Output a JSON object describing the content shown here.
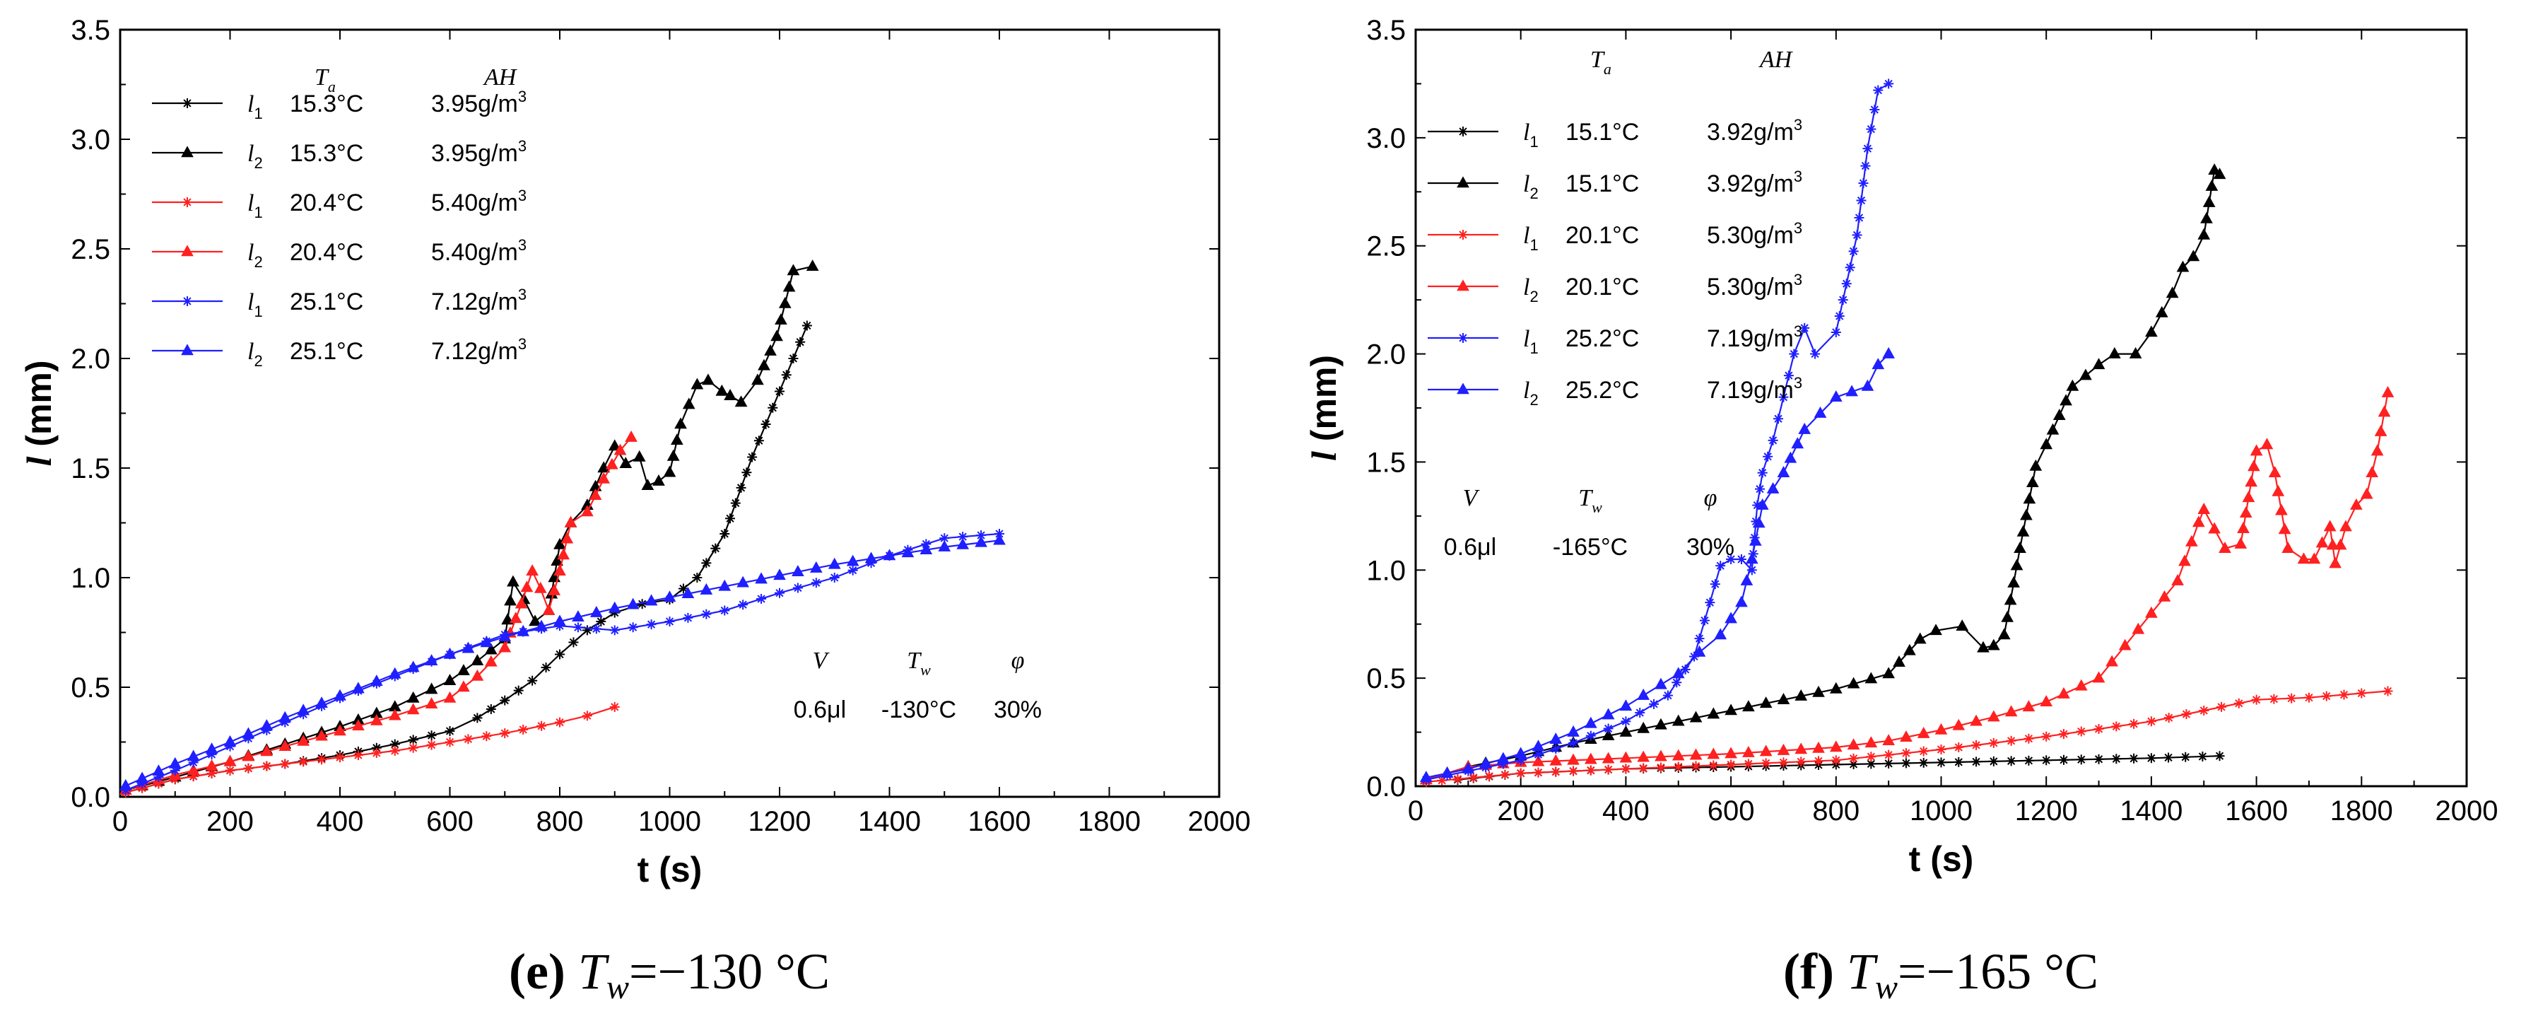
{
  "chart_data": [
    {
      "type": "line",
      "id": "e",
      "caption": {
        "letter": "(e)",
        "lhs_main": "T",
        "lhs_sub": "w",
        "rhs": "=−130 °C"
      },
      "xlabel": "t (s)",
      "ylabel_main": "l",
      "ylabel_unit": "(mm)",
      "xlim": [
        0,
        2000
      ],
      "ylim": [
        0.0,
        3.5
      ],
      "xticks": [
        "0",
        "200",
        "400",
        "600",
        "800",
        "1000",
        "1200",
        "1400",
        "1600",
        "1800",
        "2000"
      ],
      "yticks": [
        "0.0",
        "0.5",
        "1.0",
        "1.5",
        "2.0",
        "2.5",
        "3.0",
        "3.5"
      ],
      "legend": {
        "placement": "top-left",
        "header_ta": "T",
        "header_ta_sub": "a",
        "header_ah": "AH"
      },
      "conditions": {
        "placement": "bottom-right",
        "headers": [
          [
            "V",
            ""
          ],
          [
            "T",
            "w"
          ],
          [
            "φ",
            ""
          ]
        ],
        "values": [
          "0.6μl",
          "-130°C",
          "30%"
        ]
      },
      "series": [
        {
          "label": "l",
          "sub": "1",
          "ta": "15.3°C",
          "ah": "3.95g/m",
          "ah_sup": "3",
          "color": "#000000",
          "marker": "star",
          "x": [
            10,
            100,
            200,
            300,
            400,
            500,
            600,
            650,
            700,
            750,
            800,
            850,
            900,
            950,
            1000,
            1050,
            1100,
            1150,
            1200,
            1250
          ],
          "y": [
            0.02,
            0.08,
            0.12,
            0.15,
            0.19,
            0.24,
            0.3,
            0.36,
            0.44,
            0.53,
            0.65,
            0.76,
            0.84,
            0.88,
            0.9,
            1.0,
            1.2,
            1.55,
            1.85,
            2.15
          ]
        },
        {
          "label": "l",
          "sub": "2",
          "ta": "15.3°C",
          "ah": "3.95g/m",
          "ah_sup": "3",
          "color": "#000000",
          "marker": "triangle",
          "x": [
            10,
            100,
            200,
            300,
            400,
            500,
            600,
            650,
            700,
            715,
            735,
            755,
            780,
            800,
            820,
            850,
            880,
            900,
            920,
            945,
            960,
            980,
            1000,
            1020,
            1050,
            1070,
            1095,
            1110,
            1130,
            1160,
            1195,
            1225,
            1260
          ],
          "y": [
            0.03,
            0.09,
            0.16,
            0.24,
            0.32,
            0.41,
            0.53,
            0.62,
            0.72,
            0.98,
            0.9,
            0.8,
            0.85,
            1.15,
            1.25,
            1.33,
            1.5,
            1.6,
            1.52,
            1.55,
            1.42,
            1.44,
            1.48,
            1.7,
            1.88,
            1.9,
            1.85,
            1.83,
            1.8,
            1.9,
            2.1,
            2.4,
            2.42
          ]
        },
        {
          "label": "l",
          "sub": "1",
          "ta": "20.4°C",
          "ah": "5.40g/m",
          "ah_sup": "3",
          "color": "#ff2020",
          "marker": "star",
          "x": [
            10,
            100,
            200,
            300,
            400,
            500,
            600,
            700,
            800,
            850,
            900
          ],
          "y": [
            0.02,
            0.08,
            0.12,
            0.15,
            0.18,
            0.21,
            0.25,
            0.29,
            0.34,
            0.37,
            0.41
          ]
        },
        {
          "label": "l",
          "sub": "2",
          "ta": "20.4°C",
          "ah": "5.40g/m",
          "ah_sup": "3",
          "color": "#ff2020",
          "marker": "triangle",
          "x": [
            10,
            100,
            200,
            300,
            400,
            500,
            600,
            650,
            700,
            730,
            750,
            765,
            780,
            800,
            820,
            850,
            880,
            910,
            930
          ],
          "y": [
            0.03,
            0.1,
            0.16,
            0.23,
            0.3,
            0.37,
            0.45,
            0.55,
            0.68,
            0.88,
            1.03,
            0.95,
            0.85,
            1.03,
            1.25,
            1.3,
            1.45,
            1.58,
            1.64
          ]
        },
        {
          "label": "l",
          "sub": "1",
          "ta": "25.1°C",
          "ah": "7.12g/m",
          "ah_sup": "3",
          "color": "#1f1fff",
          "marker": "star",
          "x": [
            10,
            100,
            200,
            300,
            400,
            500,
            600,
            700,
            800,
            900,
            1000,
            1100,
            1200,
            1300,
            1400,
            1500,
            1600
          ],
          "y": [
            0.03,
            0.12,
            0.23,
            0.34,
            0.45,
            0.55,
            0.65,
            0.74,
            0.78,
            0.76,
            0.8,
            0.85,
            0.93,
            1.0,
            1.1,
            1.18,
            1.2
          ]
        },
        {
          "label": "l",
          "sub": "2",
          "ta": "25.1°C",
          "ah": "7.12g/m",
          "ah_sup": "3",
          "color": "#1f1fff",
          "marker": "triangle",
          "x": [
            10,
            100,
            200,
            300,
            400,
            500,
            600,
            700,
            800,
            900,
            1000,
            1100,
            1200,
            1300,
            1400,
            1500,
            1600
          ],
          "y": [
            0.05,
            0.15,
            0.25,
            0.36,
            0.46,
            0.56,
            0.65,
            0.73,
            0.8,
            0.86,
            0.91,
            0.96,
            1.01,
            1.06,
            1.1,
            1.14,
            1.17
          ]
        }
      ]
    },
    {
      "type": "line",
      "id": "f",
      "caption": {
        "letter": "(f)",
        "lhs_main": "T",
        "lhs_sub": "w",
        "rhs": "=−165 °C"
      },
      "xlabel": "t (s)",
      "ylabel_main": "l",
      "ylabel_unit": "(mm)",
      "xlim": [
        0,
        2000
      ],
      "ylim": [
        0.0,
        3.5
      ],
      "xticks": [
        "0",
        "200",
        "400",
        "600",
        "800",
        "1000",
        "1200",
        "1400",
        "1600",
        "1800",
        "2000"
      ],
      "yticks": [
        "0.0",
        "0.5",
        "1.0",
        "1.5",
        "2.0",
        "2.5",
        "3.0",
        "3.5"
      ],
      "legend": {
        "placement": "top-left",
        "header_ta": "T",
        "header_ta_sub": "a",
        "header_ah": "AH"
      },
      "conditions": {
        "placement": "center-left",
        "headers": [
          [
            "V",
            ""
          ],
          [
            "T",
            "w"
          ],
          [
            "φ",
            ""
          ]
        ],
        "values": [
          "0.6μl",
          "-165°C",
          "30%"
        ]
      },
      "series": [
        {
          "label": "l",
          "sub": "1",
          "ta": "15.1°C",
          "ah": "3.92g/m",
          "ah_sup": "3",
          "color": "#000000",
          "marker": "star",
          "x": [
            80,
            200,
            400,
            600,
            800,
            1000,
            1200,
            1400,
            1530
          ],
          "y": [
            0.03,
            0.06,
            0.08,
            0.09,
            0.1,
            0.11,
            0.12,
            0.13,
            0.14
          ]
        },
        {
          "label": "l",
          "sub": "2",
          "ta": "15.1°C",
          "ah": "3.92g/m",
          "ah_sup": "3",
          "color": "#000000",
          "marker": "triangle",
          "x": [
            20,
            100,
            200,
            300,
            400,
            500,
            600,
            700,
            800,
            900,
            960,
            990,
            1040,
            1080,
            1100,
            1120,
            1150,
            1180,
            1200,
            1250,
            1300,
            1330,
            1370,
            1400,
            1440,
            1460,
            1480,
            1500,
            1520,
            1530
          ],
          "y": [
            0.03,
            0.09,
            0.14,
            0.2,
            0.25,
            0.3,
            0.35,
            0.4,
            0.45,
            0.52,
            0.68,
            0.72,
            0.74,
            0.64,
            0.65,
            0.7,
            1.1,
            1.48,
            1.58,
            1.85,
            1.95,
            2.0,
            2.0,
            2.1,
            2.28,
            2.4,
            2.45,
            2.55,
            2.85,
            2.83
          ]
        },
        {
          "label": "l",
          "sub": "1",
          "ta": "20.1°C",
          "ah": "5.30g/m",
          "ah_sup": "3",
          "color": "#ff2020",
          "marker": "star",
          "x": [
            20,
            200,
            400,
            600,
            800,
            1000,
            1200,
            1400,
            1500,
            1600,
            1700,
            1800,
            1850
          ],
          "y": [
            0.02,
            0.06,
            0.08,
            0.1,
            0.12,
            0.17,
            0.23,
            0.3,
            0.35,
            0.4,
            0.41,
            0.43,
            0.44
          ]
        },
        {
          "label": "l",
          "sub": "2",
          "ta": "20.1°C",
          "ah": "5.30g/m",
          "ah_sup": "3",
          "color": "#ff2020",
          "marker": "triangle",
          "x": [
            20,
            100,
            200,
            400,
            600,
            800,
            900,
            1000,
            1100,
            1200,
            1300,
            1350,
            1400,
            1450,
            1490,
            1500,
            1540,
            1570,
            1600,
            1620,
            1635,
            1660,
            1690,
            1710,
            1740,
            1750,
            1770,
            1790,
            1810,
            1830,
            1850
          ],
          "y": [
            0.03,
            0.09,
            0.11,
            0.13,
            0.15,
            0.18,
            0.21,
            0.26,
            0.32,
            0.39,
            0.5,
            0.65,
            0.8,
            0.95,
            1.22,
            1.28,
            1.1,
            1.12,
            1.55,
            1.58,
            1.45,
            1.1,
            1.05,
            1.05,
            1.2,
            1.03,
            1.2,
            1.3,
            1.35,
            1.55,
            1.82
          ]
        },
        {
          "label": "l",
          "sub": "1",
          "ta": "25.2°C",
          "ah": "7.19g/m",
          "ah_sup": "3",
          "color": "#1f1fff",
          "marker": "star",
          "x": [
            20,
            100,
            200,
            300,
            400,
            480,
            530,
            560,
            580,
            600,
            620,
            640,
            650,
            660,
            680,
            700,
            720,
            740,
            760,
            800,
            840,
            860,
            880,
            900
          ],
          "y": [
            0.03,
            0.07,
            0.12,
            0.2,
            0.3,
            0.42,
            0.6,
            0.85,
            1.02,
            1.05,
            1.05,
            1.0,
            1.3,
            1.45,
            1.6,
            1.8,
            2.0,
            2.12,
            2.0,
            2.1,
            2.55,
            2.95,
            3.22,
            3.25
          ]
        },
        {
          "label": "l",
          "sub": "2",
          "ta": "25.2°C",
          "ah": "7.19g/m",
          "ah_sup": "3",
          "color": "#1f1fff",
          "marker": "triangle",
          "x": [
            20,
            100,
            200,
            300,
            400,
            500,
            540,
            580,
            620,
            640,
            660,
            700,
            740,
            800,
            860,
            880,
            900
          ],
          "y": [
            0.04,
            0.08,
            0.15,
            0.25,
            0.37,
            0.52,
            0.62,
            0.7,
            0.85,
            1.05,
            1.3,
            1.45,
            1.65,
            1.8,
            1.85,
            1.95,
            2.0
          ]
        }
      ]
    }
  ]
}
